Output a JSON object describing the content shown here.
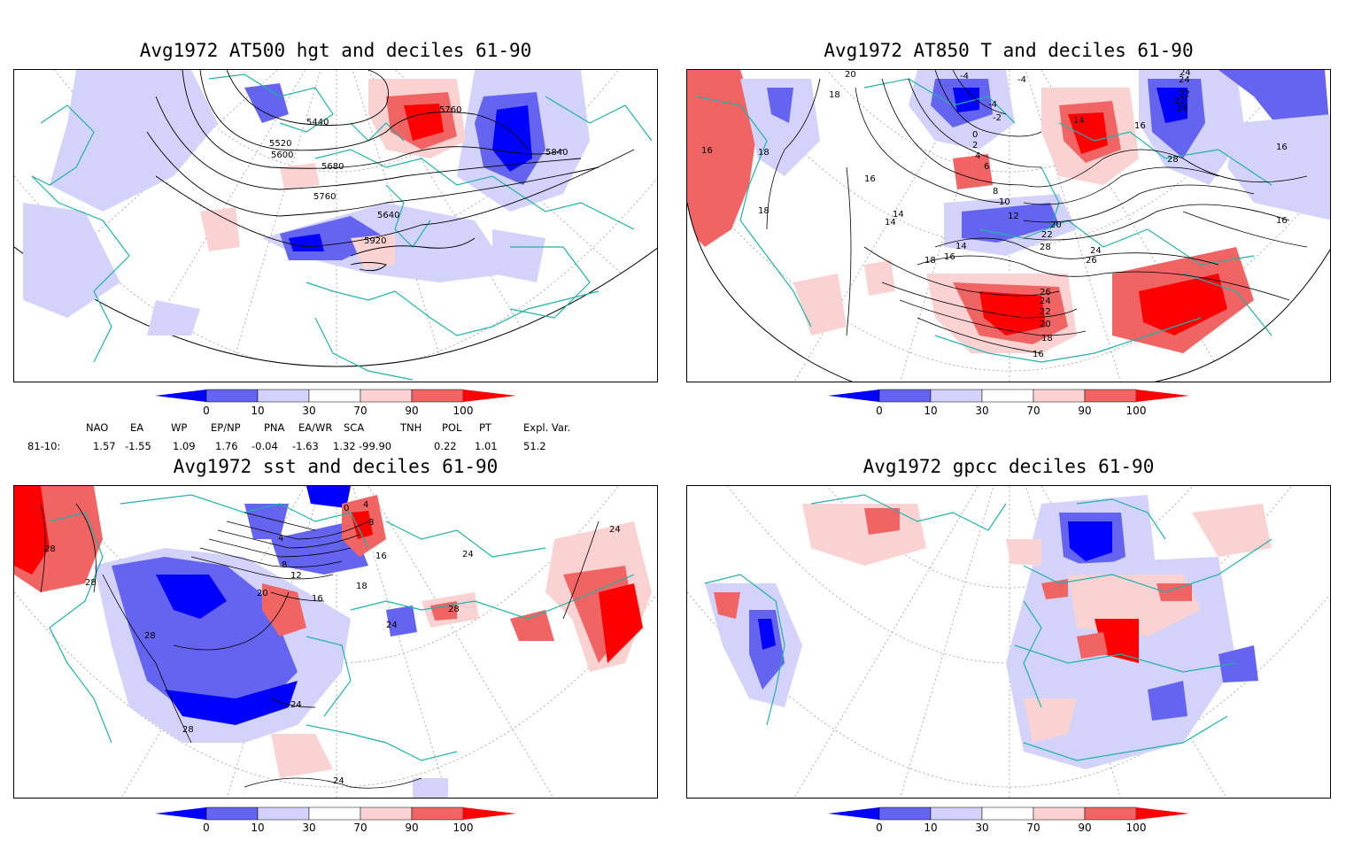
{
  "panels": [
    {
      "id": "p1",
      "title": "Avg1972 AT500 hgt and deciles 61-90",
      "contour_labels": [
        "5440",
        "5520",
        "5600",
        "5680",
        "5760",
        "5840",
        "5640",
        "5920",
        "5760"
      ]
    },
    {
      "id": "p2",
      "title": "Avg1972 AT850 T and deciles 61-90",
      "contour_labels": [
        "20",
        "18",
        "18",
        "16",
        "16",
        "18",
        "14",
        "14",
        "16",
        "18",
        "-4",
        "-4",
        "-2",
        "0",
        "2",
        "4",
        "6",
        "8",
        "10",
        "12",
        "14",
        "16",
        "20",
        "22",
        "24",
        "26",
        "28",
        "24",
        "22",
        "26",
        "16",
        "16",
        "18",
        "20",
        "22",
        "24",
        "26",
        "28",
        "16",
        "-4",
        "24",
        "22",
        "14"
      ]
    },
    {
      "id": "p3",
      "title": "Avg1972 sst and deciles 61-90",
      "contour_labels": [
        "28",
        "28",
        "28",
        "28",
        "24",
        "24",
        "20",
        "16",
        "12",
        "8",
        "4",
        "0",
        "4",
        "8",
        "16",
        "18",
        "24",
        "28",
        "24",
        "24"
      ]
    },
    {
      "id": "p4",
      "title": "Avg1972 gpcc deciles 61-90",
      "contour_labels": []
    }
  ],
  "colorbar": {
    "ticks": [
      "0",
      "10",
      "30",
      "70",
      "90",
      "100"
    ],
    "colors": [
      "#0000ff",
      "#6464f0",
      "#d2d2fa",
      "#ffffff",
      "#fad2d2",
      "#f06464",
      "#ff0000"
    ]
  },
  "teleconnections": {
    "headers": [
      "NAO",
      "EA",
      "WP",
      "EP/NP",
      "PNA",
      "EA/WR",
      "SCA",
      "TNH",
      "POL",
      "PT",
      "Expl. Var."
    ],
    "row_label": "81-10:",
    "values": [
      "1.57",
      "-1.55",
      "1.09",
      "1.76",
      "-0.04",
      "-1.63",
      "1.32",
      "-99.90",
      "0.22",
      "1.01",
      "51.2"
    ]
  }
}
